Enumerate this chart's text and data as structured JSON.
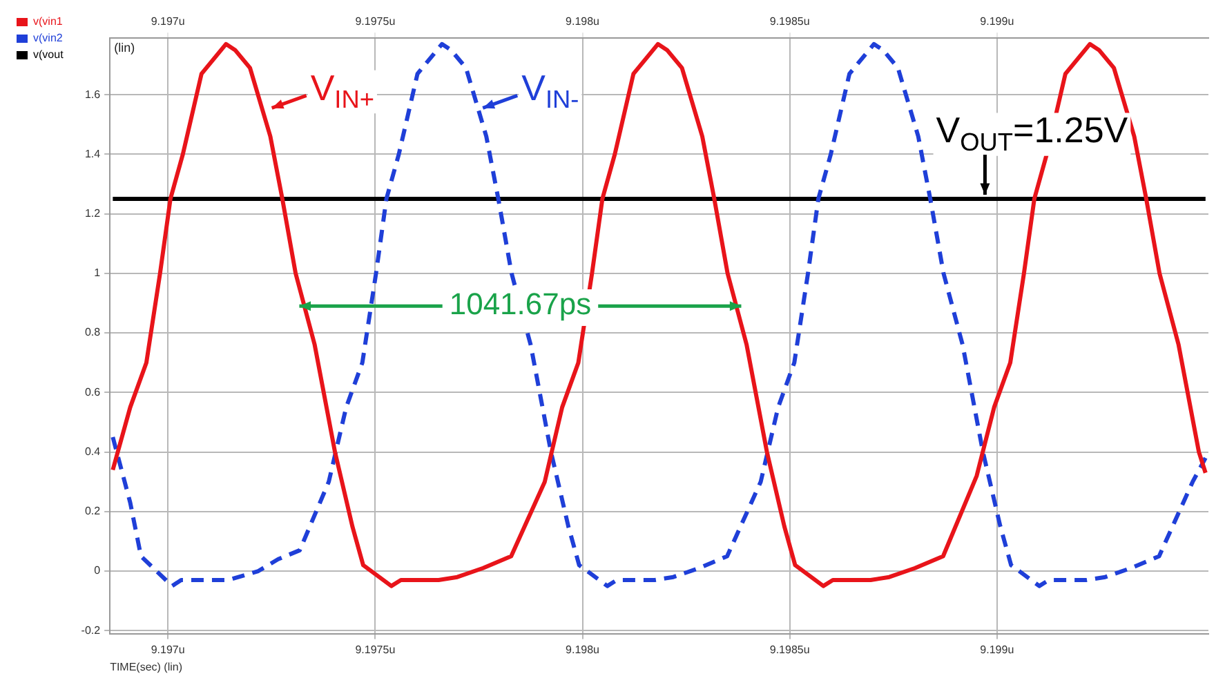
{
  "chart_data": {
    "type": "line",
    "xlabel": "TIME(sec) (lin)",
    "ylabel": "(lin)",
    "xlim": [
      9.19686,
      9.19951
    ],
    "xticks": [
      {
        "value": 9.197,
        "label": "9.197u"
      },
      {
        "value": 9.1975,
        "label": "9.1975u"
      },
      {
        "value": 9.198,
        "label": "9.198u"
      },
      {
        "value": 9.1985,
        "label": "9.1985u"
      },
      {
        "value": 9.199,
        "label": "9.199u"
      }
    ],
    "x2lim": [
      9.19686,
      9.19951
    ],
    "x2ticks": [
      {
        "value": 9.197,
        "label": "9.197u"
      },
      {
        "value": 9.1975,
        "label": "9.1975u"
      },
      {
        "value": 9.198,
        "label": "9.198u"
      },
      {
        "value": 9.1985,
        "label": "9.1985u"
      },
      {
        "value": 9.199,
        "label": "9.199u"
      }
    ],
    "ylim": [
      -0.21,
      1.79
    ],
    "yticks": [
      -0.2,
      0,
      0.2,
      0.4,
      0.6,
      0.8,
      1,
      1.2,
      1.4,
      1.6
    ],
    "grid": true,
    "legend": "top left",
    "marker": "none",
    "series": [
      {
        "name": "v(vin1",
        "color": "#e8141a",
        "line_style": "solid",
        "x": [
          9.196867,
          9.196909,
          9.196948,
          9.196981,
          9.197006,
          9.197036,
          9.197081,
          9.19714,
          9.197162,
          9.197198,
          9.197247,
          9.197276,
          9.197308,
          9.197354,
          9.197403,
          9.197445,
          9.197471,
          9.197539,
          9.197562,
          9.197653,
          9.197698,
          9.19776,
          9.197828,
          9.197909,
          9.197951,
          9.19799,
          9.198023,
          9.198048,
          9.198078,
          9.198123,
          9.198182,
          9.198204,
          9.19824,
          9.198289,
          9.198318,
          9.19835,
          9.198396,
          9.198445,
          9.198487,
          9.198513,
          9.198581,
          9.198604,
          9.198695,
          9.19874,
          9.198802,
          9.19887,
          9.198951,
          9.198993,
          9.199032,
          9.199065,
          9.19909,
          9.19912,
          9.199165,
          9.199224,
          9.199246,
          9.199282,
          9.199331,
          9.19936,
          9.199392,
          9.199438,
          9.199487,
          9.199503
        ],
        "values": [
          0.34,
          0.55,
          0.7,
          1,
          1.25,
          1.4,
          1.67,
          1.77,
          1.75,
          1.69,
          1.46,
          1.25,
          1,
          0.76,
          0.4,
          0.15,
          0.02,
          -0.05,
          -0.03,
          -0.03,
          -0.02,
          0.01,
          0.05,
          0.3,
          0.55,
          0.7,
          1,
          1.25,
          1.4,
          1.67,
          1.77,
          1.75,
          1.69,
          1.46,
          1.25,
          1,
          0.76,
          0.4,
          0.15,
          0.02,
          -0.05,
          -0.03,
          -0.03,
          -0.02,
          0.01,
          0.05,
          0.32,
          0.55,
          0.7,
          1,
          1.25,
          1.4,
          1.67,
          1.77,
          1.75,
          1.69,
          1.46,
          1.25,
          1,
          0.76,
          0.4,
          0.33
        ]
      },
      {
        "name": "v(vin2",
        "color": "#1f3fd8",
        "line_style": "dashed",
        "x": [
          9.196867,
          9.196909,
          9.196935,
          9.19701,
          9.197032,
          9.197146,
          9.197218,
          9.197266,
          9.197318,
          9.197388,
          9.19743,
          9.197469,
          9.197502,
          9.197527,
          9.197557,
          9.197602,
          9.197661,
          9.197683,
          9.197719,
          9.197768,
          9.197797,
          9.197829,
          9.197875,
          9.197924,
          9.197966,
          9.197992,
          9.19806,
          9.198083,
          9.198174,
          9.198219,
          9.198281,
          9.198349,
          9.19843,
          9.198472,
          9.198511,
          9.198544,
          9.198569,
          9.198599,
          9.198644,
          9.198703,
          9.198725,
          9.198761,
          9.19881,
          9.198839,
          9.198871,
          9.198917,
          9.198966,
          9.199008,
          9.199034,
          9.199102,
          9.199125,
          9.199216,
          9.199261,
          9.199323,
          9.199391,
          9.199472,
          9.199503
        ],
        "values": [
          0.45,
          0.23,
          0.05,
          -0.05,
          -0.03,
          -0.03,
          0,
          0.04,
          0.07,
          0.3,
          0.55,
          0.7,
          1,
          1.25,
          1.4,
          1.67,
          1.77,
          1.75,
          1.69,
          1.46,
          1.25,
          1,
          0.76,
          0.4,
          0.15,
          0.02,
          -0.05,
          -0.03,
          -0.03,
          -0.02,
          0.01,
          0.05,
          0.3,
          0.55,
          0.7,
          1,
          1.25,
          1.4,
          1.67,
          1.77,
          1.75,
          1.69,
          1.46,
          1.25,
          1,
          0.76,
          0.4,
          0.15,
          0.02,
          -0.05,
          -0.03,
          -0.03,
          -0.02,
          0.01,
          0.05,
          0.3,
          0.38
        ]
      },
      {
        "name": "v(vout",
        "color": "#000000",
        "line_style": "solid",
        "x": [
          9.196867,
          9.199503
        ],
        "values": [
          1.25,
          1.25
        ]
      }
    ],
    "annotations": [
      {
        "text": "V$_{IN+}$",
        "x": 9.197244,
        "y": 1.56
      },
      {
        "text": "V$_{IN-}$",
        "x": 9.197753,
        "y": 1.56
      },
      {
        "text": "V$_{OUT}$=1.25V",
        "x": 9.198971,
        "y": 1.25
      },
      {
        "text": "1041.67ps",
        "x": 9.19785,
        "y": 0.89
      }
    ]
  }
}
